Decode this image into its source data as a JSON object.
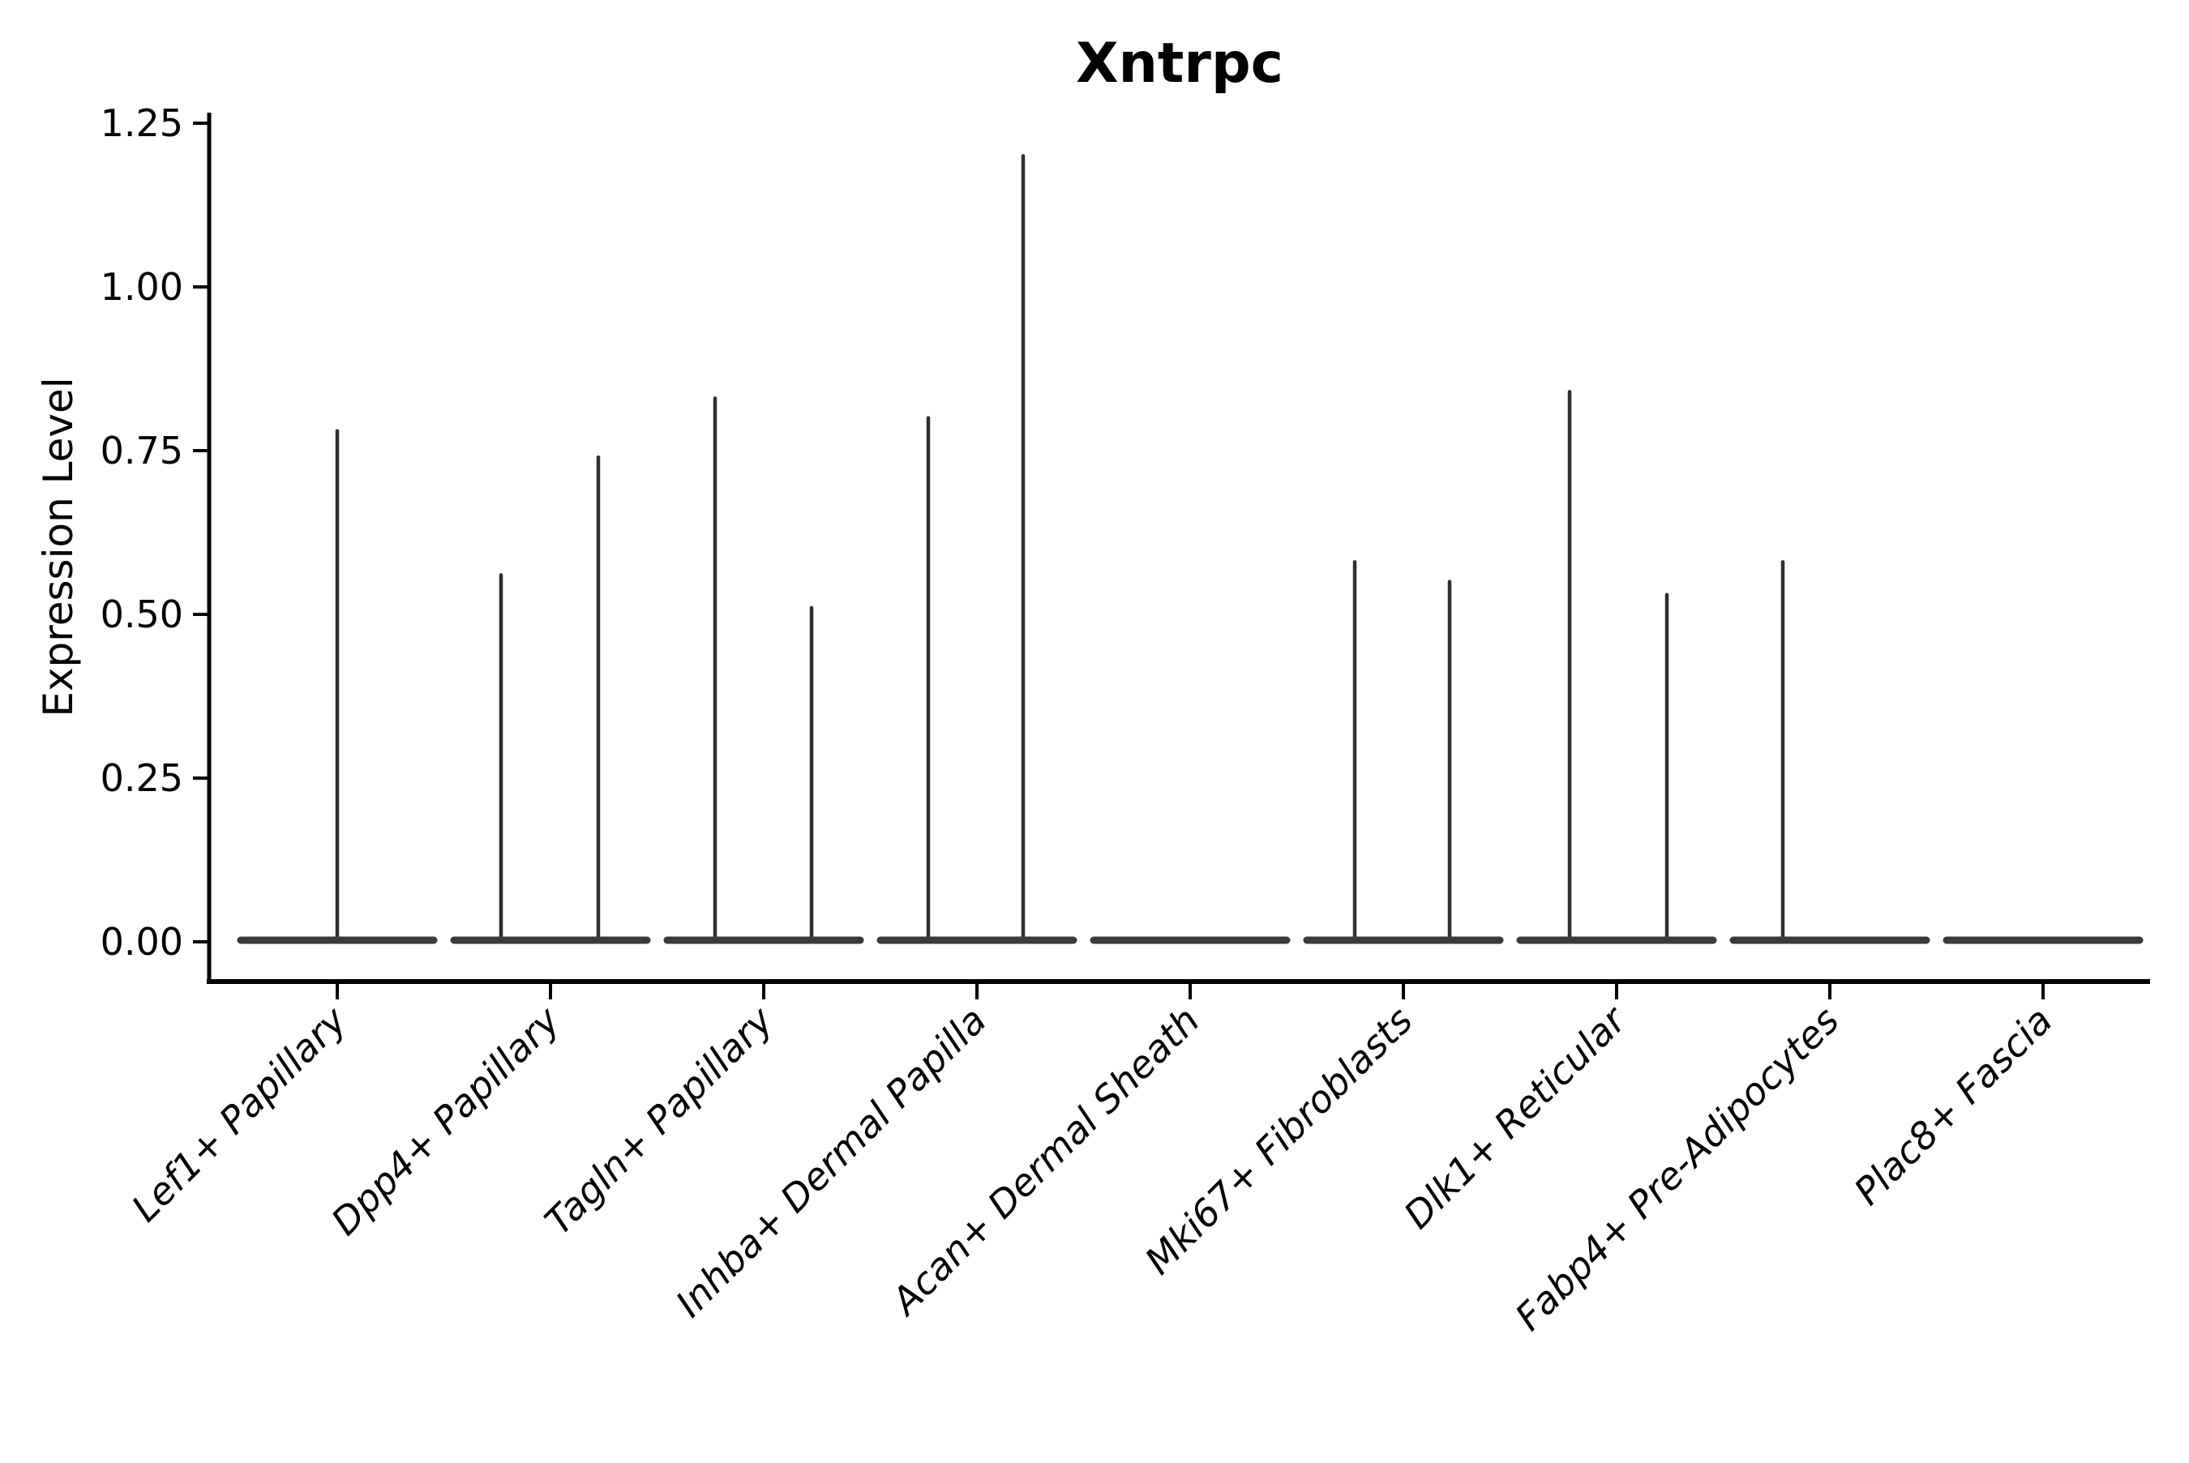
{
  "chart_data": {
    "type": "violin",
    "title": "Xntrpc",
    "ylabel": "Expression Level",
    "xlabel": "",
    "ylim": [
      -0.06,
      1.27
    ],
    "grid": false,
    "legend_position": "none",
    "xtick_rotation_deg": 45,
    "yticks": {
      "values": [
        0,
        0.25,
        0.5,
        0.75,
        1.0,
        1.25
      ],
      "labels": [
        "0.00",
        "0.25",
        "0.50",
        "0.75",
        "1.00",
        "1.25"
      ]
    },
    "baseline_value": 0.0,
    "categories": [
      {
        "label": "Lef1+ Papillary",
        "violins": [
          {
            "offset": 0,
            "max": 0.78
          }
        ]
      },
      {
        "label": "Dpp4+ Papillary",
        "violins": [
          {
            "offset": -61,
            "max": 0.56
          },
          {
            "offset": 59,
            "max": 0.74
          }
        ]
      },
      {
        "label": "Tagln+ Papillary",
        "violins": [
          {
            "offset": -60,
            "max": 0.83
          },
          {
            "offset": 59,
            "max": 0.51
          }
        ]
      },
      {
        "label": "Inhba+ Dermal Papilla",
        "violins": [
          {
            "offset": -60,
            "max": 0.8
          },
          {
            "offset": 57,
            "max": 1.2
          }
        ]
      },
      {
        "label": "Acan+ Dermal Sheath",
        "violins": []
      },
      {
        "label": "Mki67+ Fibroblasts",
        "violins": [
          {
            "offset": -60,
            "max": 0.58
          },
          {
            "offset": 57,
            "max": 0.55
          }
        ]
      },
      {
        "label": "Dlk1+ Reticular",
        "violins": [
          {
            "offset": -58,
            "max": 0.84
          },
          {
            "offset": 62,
            "max": 0.53
          }
        ]
      },
      {
        "label": "Fabp4+ Pre-Adipocytes",
        "violins": [
          {
            "offset": -58,
            "max": 0.58
          }
        ]
      },
      {
        "label": "Plac8+ Fascia",
        "violins": []
      }
    ],
    "colors": {
      "background": "#ffffff",
      "axis": "#000000",
      "text": "#000000",
      "violin_base": "#3a3a3a",
      "violin_spike": "#2f2f2f"
    }
  }
}
